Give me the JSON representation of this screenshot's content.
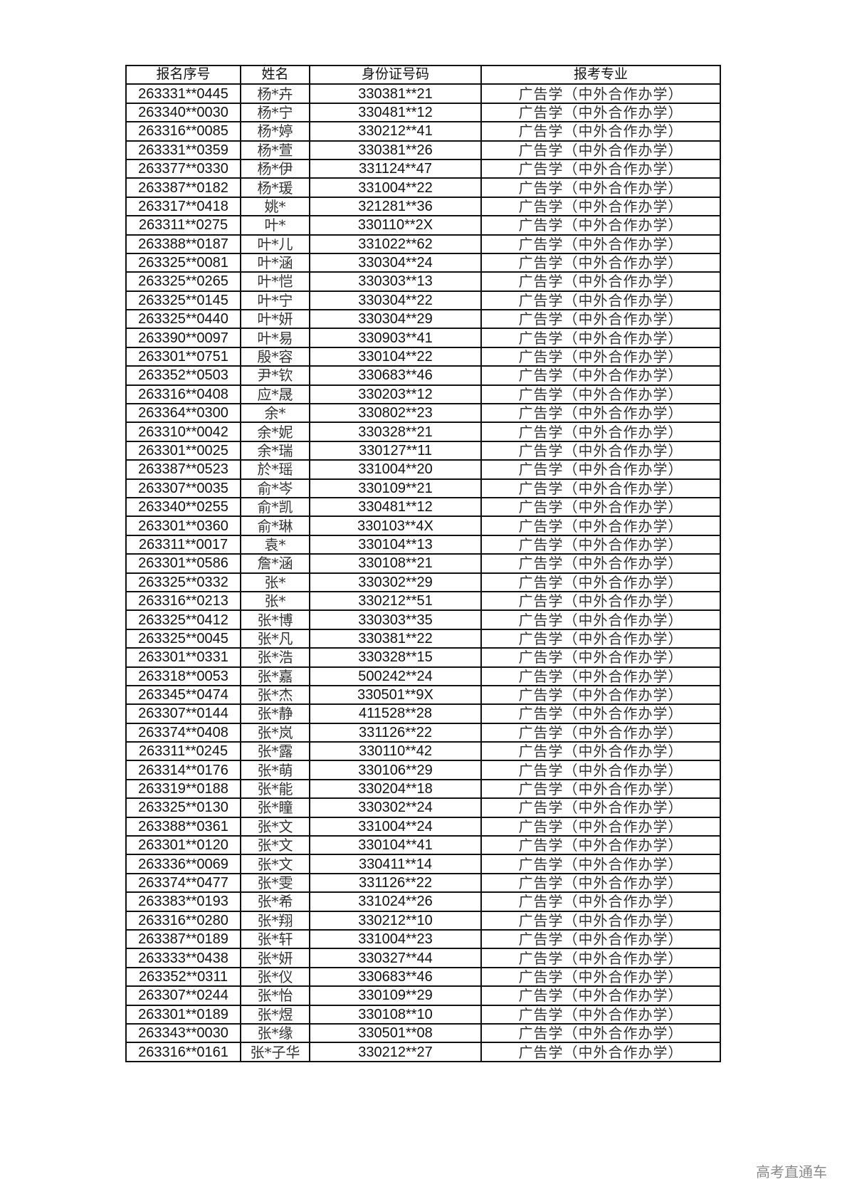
{
  "table": {
    "headers": [
      "报名序号",
      "姓名",
      "身份证号码",
      "报考专业"
    ],
    "rows": [
      [
        "263331**0445",
        "杨*卉",
        "330381**21",
        "广告学（中外合作办学）"
      ],
      [
        "263340**0030",
        "杨*宁",
        "330481**12",
        "广告学（中外合作办学）"
      ],
      [
        "263316**0085",
        "杨*婷",
        "330212**41",
        "广告学（中外合作办学）"
      ],
      [
        "263331**0359",
        "杨*萱",
        "330381**26",
        "广告学（中外合作办学）"
      ],
      [
        "263377**0330",
        "杨*伊",
        "331124**47",
        "广告学（中外合作办学）"
      ],
      [
        "263387**0182",
        "杨*瑗",
        "331004**22",
        "广告学（中外合作办学）"
      ],
      [
        "263317**0418",
        "姚*",
        "321281**36",
        "广告学（中外合作办学）"
      ],
      [
        "263311**0275",
        "叶*",
        "330110**2X",
        "广告学（中外合作办学）"
      ],
      [
        "263388**0187",
        "叶*儿",
        "331022**62",
        "广告学（中外合作办学）"
      ],
      [
        "263325**0081",
        "叶*涵",
        "330304**24",
        "广告学（中外合作办学）"
      ],
      [
        "263325**0265",
        "叶*恺",
        "330303**13",
        "广告学（中外合作办学）"
      ],
      [
        "263325**0145",
        "叶*宁",
        "330304**22",
        "广告学（中外合作办学）"
      ],
      [
        "263325**0440",
        "叶*妍",
        "330304**29",
        "广告学（中外合作办学）"
      ],
      [
        "263390**0097",
        "叶*易",
        "330903**41",
        "广告学（中外合作办学）"
      ],
      [
        "263301**0751",
        "殷*容",
        "330104**22",
        "广告学（中外合作办学）"
      ],
      [
        "263352**0503",
        "尹*钦",
        "330683**46",
        "广告学（中外合作办学）"
      ],
      [
        "263316**0408",
        "应*晟",
        "330203**12",
        "广告学（中外合作办学）"
      ],
      [
        "263364**0300",
        "余*",
        "330802**23",
        "广告学（中外合作办学）"
      ],
      [
        "263310**0042",
        "余*妮",
        "330328**21",
        "广告学（中外合作办学）"
      ],
      [
        "263301**0025",
        "余*瑞",
        "330127**11",
        "广告学（中外合作办学）"
      ],
      [
        "263387**0523",
        "於*瑶",
        "331004**20",
        "广告学（中外合作办学）"
      ],
      [
        "263307**0035",
        "俞*岑",
        "330109**21",
        "广告学（中外合作办学）"
      ],
      [
        "263340**0255",
        "俞*凯",
        "330481**12",
        "广告学（中外合作办学）"
      ],
      [
        "263301**0360",
        "俞*琳",
        "330103**4X",
        "广告学（中外合作办学）"
      ],
      [
        "263311**0017",
        "袁*",
        "330104**13",
        "广告学（中外合作办学）"
      ],
      [
        "263301**0586",
        "詹*涵",
        "330108**21",
        "广告学（中外合作办学）"
      ],
      [
        "263325**0332",
        "张*",
        "330302**29",
        "广告学（中外合作办学）"
      ],
      [
        "263316**0213",
        "张*",
        "330212**51",
        "广告学（中外合作办学）"
      ],
      [
        "263325**0412",
        "张*博",
        "330303**35",
        "广告学（中外合作办学）"
      ],
      [
        "263325**0045",
        "张*凡",
        "330381**22",
        "广告学（中外合作办学）"
      ],
      [
        "263301**0331",
        "张*浩",
        "330328**15",
        "广告学（中外合作办学）"
      ],
      [
        "263318**0053",
        "张*嘉",
        "500242**24",
        "广告学（中外合作办学）"
      ],
      [
        "263345**0474",
        "张*杰",
        "330501**9X",
        "广告学（中外合作办学）"
      ],
      [
        "263307**0144",
        "张*静",
        "411528**28",
        "广告学（中外合作办学）"
      ],
      [
        "263374**0408",
        "张*岚",
        "331126**22",
        "广告学（中外合作办学）"
      ],
      [
        "263311**0245",
        "张*露",
        "330110**42",
        "广告学（中外合作办学）"
      ],
      [
        "263314**0176",
        "张*萌",
        "330106**29",
        "广告学（中外合作办学）"
      ],
      [
        "263319**0188",
        "张*能",
        "330204**18",
        "广告学（中外合作办学）"
      ],
      [
        "263325**0130",
        "张*瞳",
        "330302**24",
        "广告学（中外合作办学）"
      ],
      [
        "263388**0361",
        "张*文",
        "331004**24",
        "广告学（中外合作办学）"
      ],
      [
        "263301**0120",
        "张*文",
        "330104**41",
        "广告学（中外合作办学）"
      ],
      [
        "263336**0069",
        "张*文",
        "330411**14",
        "广告学（中外合作办学）"
      ],
      [
        "263374**0477",
        "张*雯",
        "331126**22",
        "广告学（中外合作办学）"
      ],
      [
        "263383**0193",
        "张*希",
        "331024**26",
        "广告学（中外合作办学）"
      ],
      [
        "263316**0280",
        "张*翔",
        "330212**10",
        "广告学（中外合作办学）"
      ],
      [
        "263387**0189",
        "张*轩",
        "331004**23",
        "广告学（中外合作办学）"
      ],
      [
        "263333**0438",
        "张*妍",
        "330327**44",
        "广告学（中外合作办学）"
      ],
      [
        "263352**0311",
        "张*仪",
        "330683**46",
        "广告学（中外合作办学）"
      ],
      [
        "263307**0244",
        "张*怡",
        "330109**29",
        "广告学（中外合作办学）"
      ],
      [
        "263301**0189",
        "张*煜",
        "330108**10",
        "广告学（中外合作办学）"
      ],
      [
        "263343**0030",
        "张*缘",
        "330501**08",
        "广告学（中外合作办学）"
      ],
      [
        "263316**0161",
        "张*子华",
        "330212**27",
        "广告学（中外合作办学）"
      ]
    ]
  },
  "watermark": "高考直通车"
}
